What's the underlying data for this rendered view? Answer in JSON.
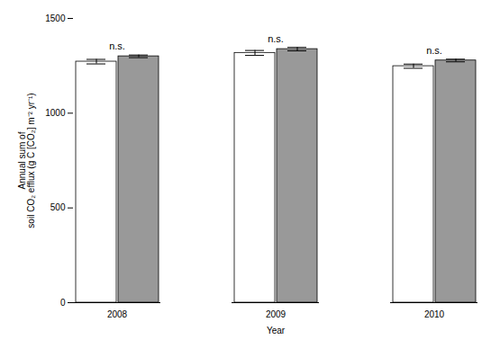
{
  "chart_data": {
    "type": "bar",
    "categories": [
      "2008",
      "2009",
      "2010"
    ],
    "series": [
      {
        "color": "#ffffff",
        "values": [
          1272,
          1318,
          1248
        ],
        "errors": [
          12,
          13,
          11
        ]
      },
      {
        "color": "#999999",
        "values": [
          1300,
          1338,
          1278
        ],
        "errors": [
          7,
          9,
          7
        ]
      }
    ],
    "xlabel": "Year",
    "ylabel": "Annual sum of\nsoil CO₂ efflux (g C [CO₂] m⁻² yr⁻¹)",
    "annotations": [
      "n.s.",
      "n.s.",
      "n.s."
    ],
    "ylim": [
      0,
      1500
    ],
    "yticks": [
      0,
      500,
      1000,
      1500
    ]
  }
}
